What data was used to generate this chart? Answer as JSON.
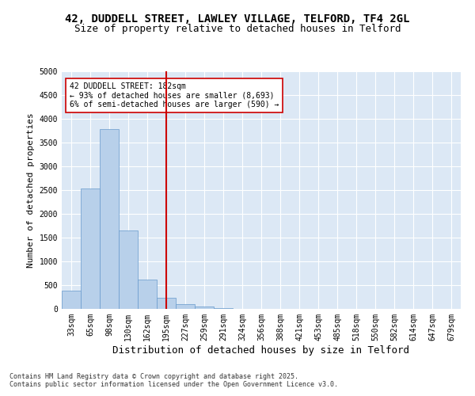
{
  "title_line1": "42, DUDDELL STREET, LAWLEY VILLAGE, TELFORD, TF4 2GL",
  "title_line2": "Size of property relative to detached houses in Telford",
  "xlabel": "Distribution of detached houses by size in Telford",
  "ylabel": "Number of detached properties",
  "categories": [
    "33sqm",
    "65sqm",
    "98sqm",
    "130sqm",
    "162sqm",
    "195sqm",
    "227sqm",
    "259sqm",
    "291sqm",
    "324sqm",
    "356sqm",
    "388sqm",
    "421sqm",
    "453sqm",
    "485sqm",
    "518sqm",
    "550sqm",
    "582sqm",
    "614sqm",
    "647sqm",
    "679sqm"
  ],
  "values": [
    380,
    2530,
    3780,
    1650,
    620,
    230,
    100,
    55,
    10,
    0,
    0,
    0,
    0,
    0,
    0,
    0,
    0,
    0,
    0,
    0,
    0
  ],
  "bar_color": "#b8d0ea",
  "bar_edge_color": "#6699cc",
  "vline_index": 5,
  "vline_color": "#cc0000",
  "annotation_text": "42 DUDDELL STREET: 182sqm\n← 93% of detached houses are smaller (8,693)\n6% of semi-detached houses are larger (590) →",
  "annotation_box_facecolor": "#ffffff",
  "annotation_box_edgecolor": "#cc0000",
  "ylim": [
    0,
    5000
  ],
  "yticks": [
    0,
    500,
    1000,
    1500,
    2000,
    2500,
    3000,
    3500,
    4000,
    4500,
    5000
  ],
  "background_color": "#dce8f5",
  "grid_color": "#ffffff",
  "footnote": "Contains HM Land Registry data © Crown copyright and database right 2025.\nContains public sector information licensed under the Open Government Licence v3.0.",
  "title_fontsize": 10,
  "subtitle_fontsize": 9,
  "xlabel_fontsize": 9,
  "ylabel_fontsize": 8,
  "tick_fontsize": 7,
  "annotation_fontsize": 7,
  "footnote_fontsize": 6
}
